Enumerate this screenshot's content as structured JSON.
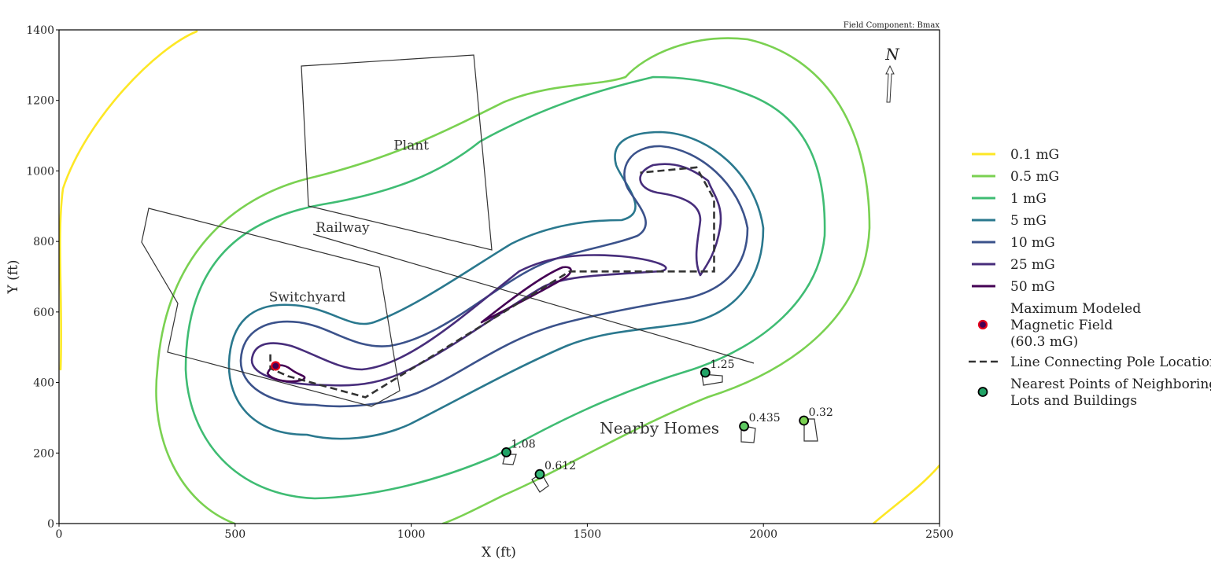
{
  "chart_data": {
    "type": "contour",
    "annotation": "Field Component: Bmax",
    "xlabel": "X (ft)",
    "ylabel": "Y (ft)",
    "xlim": [
      0,
      2500
    ],
    "ylim": [
      0,
      1400
    ],
    "xticks": [
      "0",
      "500",
      "1000",
      "1500",
      "2000",
      "2500"
    ],
    "yticks": [
      "0",
      "200",
      "400",
      "600",
      "800",
      "1000",
      "1200",
      "1400"
    ],
    "north_label": "N",
    "region_labels": [
      {
        "text": "Plant",
        "x": 1000,
        "y": 1060
      },
      {
        "text": "Railway",
        "x": 805,
        "y": 827
      },
      {
        "text": "Switchyard",
        "x": 705,
        "y": 630
      },
      {
        "text": "Nearby Homes",
        "x": 1705,
        "y": 255
      }
    ],
    "contours": [
      {
        "name": "0.1 mG",
        "color": "#fde725"
      },
      {
        "name": "0.5 mG",
        "color": "#7ad151"
      },
      {
        "name": "1 mG",
        "color": "#3fbc73"
      },
      {
        "name": "5 mG",
        "color": "#2a788e"
      },
      {
        "name": "10 mG",
        "color": "#3b528b"
      },
      {
        "name": "25 mG",
        "color": "#472d7b"
      },
      {
        "name": "50 mG",
        "color": "#440154"
      }
    ],
    "pole_line": [
      [
        600,
        480
      ],
      [
        600,
        440
      ],
      [
        650,
        418
      ],
      [
        870,
        358
      ],
      [
        1450,
        715
      ],
      [
        1860,
        715
      ],
      [
        1860,
        920
      ],
      [
        1810,
        1010
      ],
      [
        1650,
        995
      ]
    ],
    "max_point": {
      "x": 615,
      "y": 447,
      "label": "Maximum Modeled Magnetic Field (60.3 mG)"
    },
    "neighbor_points": [
      {
        "label": "1.25",
        "x": 1835,
        "y": 428,
        "color": "#21a366"
      },
      {
        "label": "1.08",
        "x": 1270,
        "y": 202,
        "color": "#21a366"
      },
      {
        "label": "0.612",
        "x": 1365,
        "y": 140,
        "color": "#35b779"
      },
      {
        "label": "0.435",
        "x": 1945,
        "y": 276,
        "color": "#5ec962"
      },
      {
        "label": "0.32",
        "x": 2115,
        "y": 292,
        "color": "#7ad151"
      }
    ],
    "legend": {
      "placement": "right",
      "entries": [
        {
          "label": "0.1 mG",
          "kind": "line",
          "color": "#fde725"
        },
        {
          "label": "0.5 mG",
          "kind": "line",
          "color": "#7ad151"
        },
        {
          "label": "1 mG",
          "kind": "line",
          "color": "#3fbc73"
        },
        {
          "label": "5 mG",
          "kind": "line",
          "color": "#2a788e"
        },
        {
          "label": "10 mG",
          "kind": "line",
          "color": "#3b528b"
        },
        {
          "label": "25 mG",
          "kind": "line",
          "color": "#472d7b"
        },
        {
          "label": "50 mG",
          "kind": "line",
          "color": "#440154"
        },
        {
          "label": "Maximum Modeled\nMagnetic Field\n(60.3 mG)",
          "kind": "maxpoint",
          "color": "#e3001b"
        },
        {
          "label": "Line Connecting Pole Locations",
          "kind": "dash",
          "color": "#333333"
        },
        {
          "label": "Nearest Points of Neighboring\nLots and Buildings",
          "kind": "point",
          "color": "#21a366"
        }
      ]
    }
  }
}
